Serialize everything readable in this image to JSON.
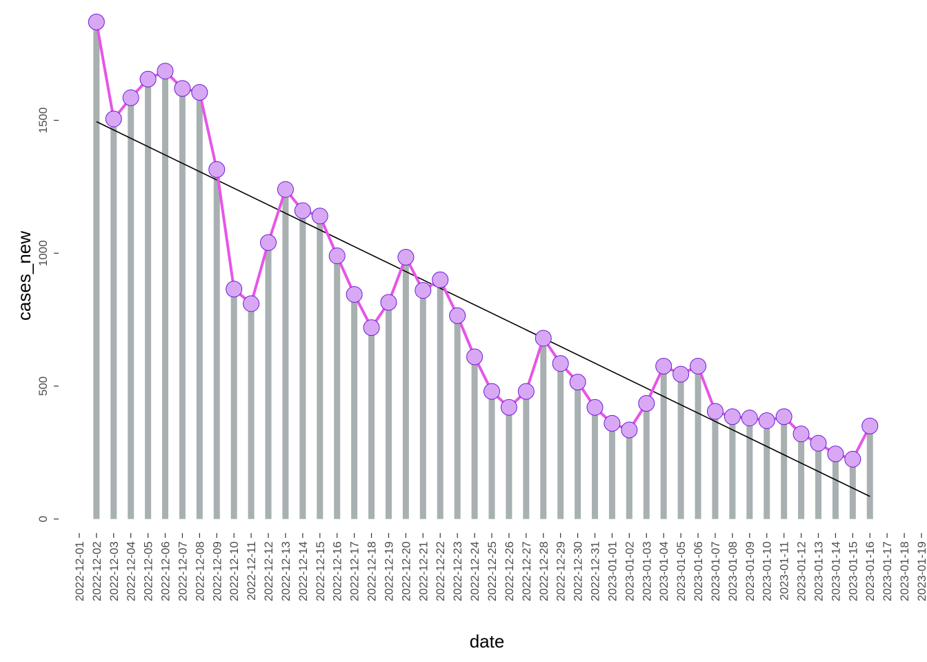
{
  "chart_data": {
    "type": "bar",
    "title": "",
    "xlabel": "date",
    "ylabel": "cases_new",
    "grid": false,
    "ylim": [
      -45,
      1880
    ],
    "y_ticks": [
      0,
      500,
      1000,
      1500
    ],
    "x_tick_labels": [
      "2022-12-01",
      "2022-12-02",
      "2022-12-03",
      "2022-12-04",
      "2022-12-05",
      "2022-12-06",
      "2022-12-07",
      "2022-12-08",
      "2022-12-09",
      "2022-12-10",
      "2022-12-11",
      "2022-12-12",
      "2022-12-13",
      "2022-12-14",
      "2022-12-15",
      "2022-12-16",
      "2022-12-17",
      "2022-12-18",
      "2022-12-19",
      "2022-12-20",
      "2022-12-21",
      "2022-12-22",
      "2022-12-23",
      "2022-12-24",
      "2022-12-25",
      "2022-12-26",
      "2022-12-27",
      "2022-12-28",
      "2022-12-29",
      "2022-12-30",
      "2022-12-31",
      "2023-01-01",
      "2023-01-02",
      "2023-01-03",
      "2023-01-04",
      "2023-01-05",
      "2023-01-06",
      "2023-01-07",
      "2023-01-08",
      "2023-01-09",
      "2023-01-10",
      "2023-01-11",
      "2023-01-12",
      "2023-01-13",
      "2023-01-14",
      "2023-01-15",
      "2023-01-16",
      "2023-01-17",
      "2023-01-18",
      "2023-01-19"
    ],
    "x_range": [
      "2022-11-30",
      "2023-01-19"
    ],
    "dates": [
      "2022-12-02",
      "2022-12-03",
      "2022-12-04",
      "2022-12-05",
      "2022-12-06",
      "2022-12-07",
      "2022-12-08",
      "2022-12-09",
      "2022-12-10",
      "2022-12-11",
      "2022-12-12",
      "2022-12-13",
      "2022-12-14",
      "2022-12-15",
      "2022-12-16",
      "2022-12-17",
      "2022-12-18",
      "2022-12-19",
      "2022-12-20",
      "2022-12-21",
      "2022-12-22",
      "2022-12-23",
      "2022-12-24",
      "2022-12-25",
      "2022-12-26",
      "2022-12-27",
      "2022-12-28",
      "2022-12-29",
      "2022-12-30",
      "2022-12-31",
      "2023-01-01",
      "2023-01-02",
      "2023-01-03",
      "2023-01-04",
      "2023-01-05",
      "2023-01-06",
      "2023-01-07",
      "2023-01-08",
      "2023-01-09",
      "2023-01-10",
      "2023-01-11",
      "2023-01-12",
      "2023-01-13",
      "2023-01-14",
      "2023-01-15",
      "2023-01-16"
    ],
    "values": [
      1870,
      1505,
      1585,
      1655,
      1685,
      1620,
      1605,
      1315,
      865,
      810,
      1040,
      1240,
      1160,
      1140,
      990,
      845,
      720,
      815,
      985,
      860,
      900,
      765,
      610,
      480,
      420,
      480,
      680,
      585,
      515,
      420,
      360,
      335,
      435,
      575,
      545,
      575,
      405,
      385,
      380,
      370,
      385,
      320,
      285,
      245,
      225,
      350
    ],
    "trend": {
      "start": 1495,
      "end": 85
    },
    "colors": {
      "bar": "#a8b0b1",
      "line": "#e755e7",
      "point_fill": "#d9a8f4",
      "point_stroke": "#6a1bd6",
      "trend": "#000000"
    }
  }
}
